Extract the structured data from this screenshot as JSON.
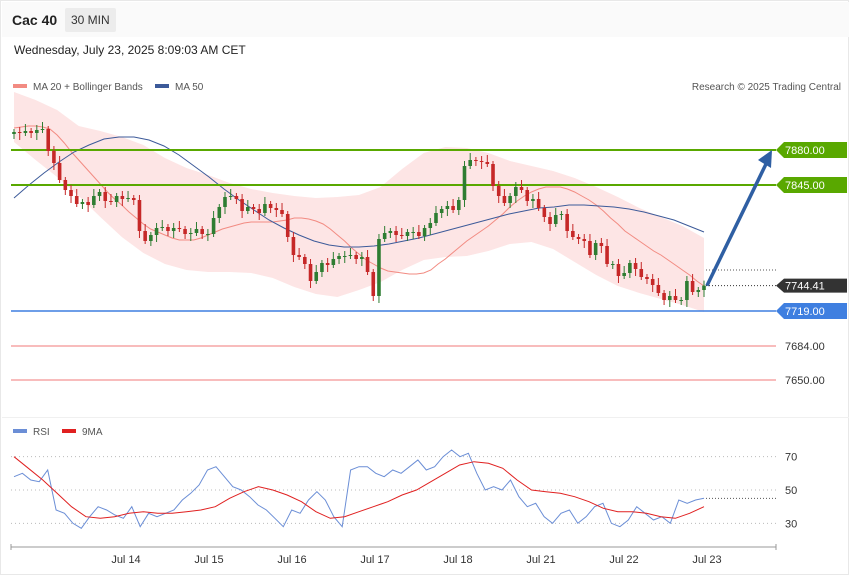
{
  "header": {
    "title": "Cac 40",
    "interval": "30 MIN"
  },
  "timestamp": "Wednesday, July 23, 2025 8:09:03 AM CET",
  "credit": "Research © 2025 Trading Central",
  "legend": {
    "main": [
      {
        "label": "MA 20 + Bollinger Bands",
        "color": "#f28b82"
      },
      {
        "label": "MA 50",
        "color": "#3c5a99"
      }
    ],
    "rsi": [
      {
        "label": "RSI",
        "color": "#6b8ed6"
      },
      {
        "label": "9MA",
        "color": "#e02020"
      }
    ]
  },
  "colors": {
    "up": "#2e7d32",
    "down": "#c62828",
    "bollinger_fill": "#fde5e5",
    "ma20": "#f28b82",
    "ma50": "#3c5a99",
    "resistance": "#59a800",
    "support": "#3f7fe0",
    "support_far": "#f5a5a5",
    "arrow": "#2f5fa3"
  },
  "chart_data": [
    {
      "type": "candlestick",
      "title": "Cac 40",
      "x_labels": [
        "Jul 14",
        "Jul 15",
        "Jul 16",
        "Jul 17",
        "Jul 18",
        "Jul 21",
        "Jul 22",
        "Jul 23"
      ],
      "ylim": [
        7620,
        7940
      ],
      "last_price": 7744.41,
      "levels": [
        {
          "value": 7880.0,
          "label": "7880.00",
          "kind": "resistance"
        },
        {
          "value": 7845.0,
          "label": "7845.00",
          "kind": "resistance"
        },
        {
          "value": 7744.41,
          "label": "7744.41",
          "kind": "last"
        },
        {
          "value": 7719.0,
          "label": "7719.00",
          "kind": "support"
        },
        {
          "value": 7684.0,
          "label": "7684.00",
          "kind": "support_far"
        },
        {
          "value": 7650.0,
          "label": "7650.00",
          "kind": "support_far"
        }
      ],
      "projection": {
        "from": 7744.41,
        "to": 7880.0
      },
      "close": [
        7898,
        7897,
        7899,
        7897,
        7900,
        7901,
        7879,
        7867,
        7850,
        7840,
        7834,
        7826,
        7828,
        7825,
        7834,
        7838,
        7829,
        7828,
        7834,
        7831,
        7832,
        7830,
        7799,
        7789,
        7795,
        7802,
        7803,
        7799,
        7802,
        7801,
        7796,
        7797,
        7801,
        7796,
        7796,
        7812,
        7823,
        7833,
        7834,
        7831,
        7819,
        7823,
        7821,
        7817,
        7826,
        7822,
        7820,
        7816,
        7793,
        7775,
        7773,
        7766,
        7749,
        7758,
        7767,
        7765,
        7771,
        7774,
        7774,
        7775,
        7771,
        7773,
        7758,
        7734,
        7791,
        7797,
        7799,
        7795,
        7794,
        7798,
        7798,
        7794,
        7802,
        7807,
        7817,
        7821,
        7824,
        7820,
        7830,
        7864,
        7870,
        7869,
        7868,
        7866,
        7844,
        7834,
        7827,
        7834,
        7843,
        7840,
        7829,
        7831,
        7822,
        7813,
        7806,
        7815,
        7816,
        7799,
        7793,
        7791,
        7789,
        7775,
        7787,
        7784,
        7766,
        7766,
        7754,
        7757,
        7767,
        7761,
        7753,
        7751,
        7745,
        7737,
        7730,
        7734,
        7730,
        7730,
        7749,
        7738,
        7740,
        7744.41
      ],
      "ma20": [
        7902,
        7903,
        7904,
        7904,
        7903,
        7901,
        7895,
        7887,
        7878,
        7870,
        7862,
        7854,
        7846,
        7838,
        7831,
        7825,
        7818,
        7812,
        7806,
        7801,
        7798,
        7795,
        7792,
        7790,
        7790,
        7790,
        7792,
        7795,
        7798,
        7801,
        7803,
        7805,
        7807,
        7808,
        7808,
        7808,
        7808,
        7809,
        7810,
        7812,
        7812,
        7811,
        7809,
        7806,
        7801,
        7795,
        7789,
        7782,
        7776,
        7770,
        7766,
        7762,
        7759,
        7758,
        7757,
        7756,
        7756,
        7757,
        7760,
        7766,
        7771,
        7777,
        7783,
        7789,
        7794,
        7799,
        7804,
        7810,
        7816,
        7823,
        7829,
        7834,
        7838,
        7841,
        7843,
        7843,
        7843,
        7841,
        7838,
        7834,
        7830,
        7825,
        7819,
        7812,
        7806,
        7799,
        7794,
        7789,
        7784,
        7779,
        7775,
        7770,
        7765,
        7760,
        7755,
        7749,
        7744
      ],
      "ma50": [
        7832,
        7845,
        7857,
        7868,
        7878,
        7885,
        7891,
        7893,
        7893,
        7890,
        7884,
        7875,
        7864,
        7853,
        7841,
        7830,
        7820,
        7810,
        7802,
        7795,
        7789,
        7785,
        7783,
        7783,
        7784,
        7786,
        7789,
        7792,
        7796,
        7800,
        7804,
        7808,
        7812,
        7816,
        7819,
        7822,
        7823,
        7825,
        7825,
        7824,
        7823,
        7821,
        7818,
        7814,
        7810,
        7804,
        7798
      ],
      "bollinger_upper": [
        7938,
        7930,
        7920,
        7904,
        7899,
        7893,
        7885,
        7872,
        7862,
        7855,
        7847,
        7841,
        7837,
        7834,
        7832,
        7833,
        7835,
        7843,
        7861,
        7877,
        7883,
        7882,
        7877,
        7869,
        7864,
        7859,
        7852,
        7843,
        7833,
        7822,
        7813,
        7804,
        7792
      ],
      "bollinger_lower": [
        7888,
        7870,
        7853,
        7834,
        7813,
        7793,
        7777,
        7766,
        7760,
        7758,
        7758,
        7757,
        7752,
        7743,
        7736,
        7733,
        7740,
        7748,
        7760,
        7770,
        7773,
        7774,
        7779,
        7786,
        7788,
        7781,
        7768,
        7755,
        7744,
        7737,
        7731,
        7725,
        7718
      ]
    },
    {
      "type": "line",
      "title": "RSI",
      "ylim": [
        20,
        80
      ],
      "y_ticks": [
        30,
        50,
        70
      ],
      "series": [
        {
          "name": "RSI",
          "values": [
            58,
            60,
            56,
            55,
            62,
            38,
            36,
            30,
            27,
            34,
            40,
            38,
            35,
            33,
            40,
            28,
            36,
            34,
            36,
            38,
            44,
            48,
            53,
            62,
            64,
            58,
            52,
            50,
            46,
            41,
            38,
            33,
            28,
            38,
            36,
            44,
            49,
            44,
            34,
            28,
            62,
            64,
            64,
            60,
            58,
            62,
            60,
            64,
            68,
            62,
            64,
            70,
            74,
            70,
            72,
            60,
            50,
            52,
            50,
            56,
            46,
            40,
            42,
            34,
            30,
            36,
            38,
            30,
            34,
            40,
            42,
            30,
            28,
            32,
            40,
            36,
            32,
            34,
            30,
            44,
            42,
            44,
            45
          ]
        },
        {
          "name": "9MA",
          "values": [
            70,
            63,
            56,
            48,
            40,
            34,
            33,
            34,
            36,
            37,
            36,
            36,
            37,
            38,
            40,
            45,
            49,
            52,
            50,
            47,
            43,
            37,
            33,
            34,
            37,
            40,
            43,
            47,
            50,
            55,
            60,
            65,
            67,
            66,
            63,
            56,
            50,
            49,
            48,
            46,
            43,
            39,
            37,
            37,
            36,
            34,
            33,
            36,
            40
          ]
        }
      ]
    }
  ]
}
